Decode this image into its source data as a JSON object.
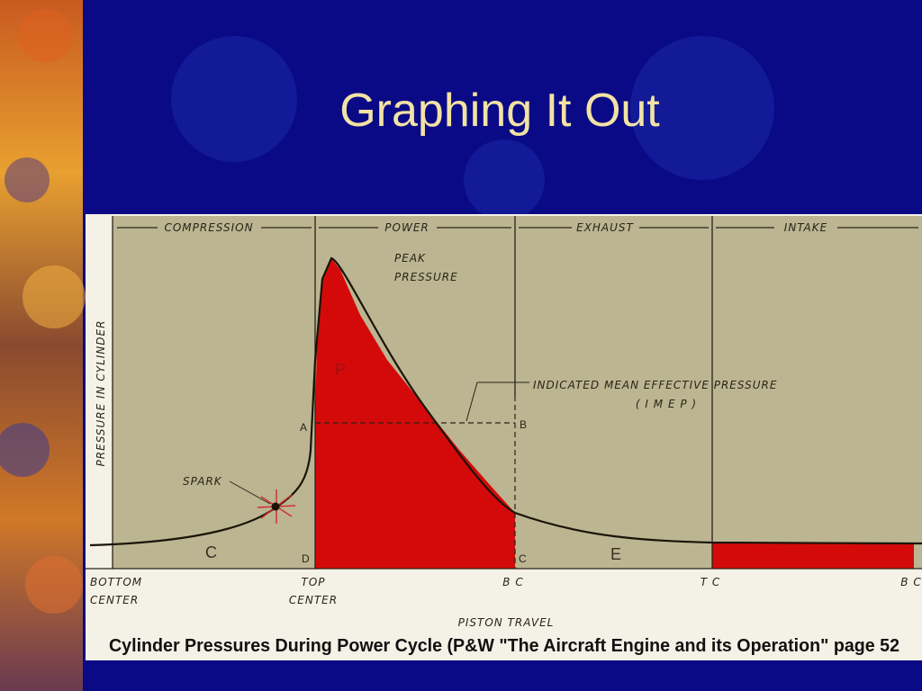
{
  "title": "Graphing It Out",
  "diagram": {
    "phases": [
      "COMPRESSION",
      "POWER",
      "EXHAUST",
      "INTAKE"
    ],
    "y_axis_label": "PRESSURE IN CYLINDER",
    "peak_label": [
      "PEAK",
      "PRESSURE"
    ],
    "imep_label": [
      "INDICATED MEAN EFFECTIVE PRESSURE",
      "( I M E P )"
    ],
    "points": {
      "a": "A",
      "b": "B",
      "c_top": "C",
      "c_bottom": "C",
      "d": "D",
      "e": "E",
      "p": "P"
    },
    "spark_label": "SPARK",
    "x_labels": {
      "bottom_center": [
        "BOTTOM",
        "CENTER"
      ],
      "top_center": [
        "TOP",
        "CENTER"
      ],
      "bc_1": "B C",
      "tc": "T C",
      "bc_2": "B C"
    },
    "x_axis_label": "PISTON TRAVEL",
    "caption": "Cylinder Pressures During Power Cycle (P&W \"The Aircraft Engine and its Operation\" page 52"
  }
}
